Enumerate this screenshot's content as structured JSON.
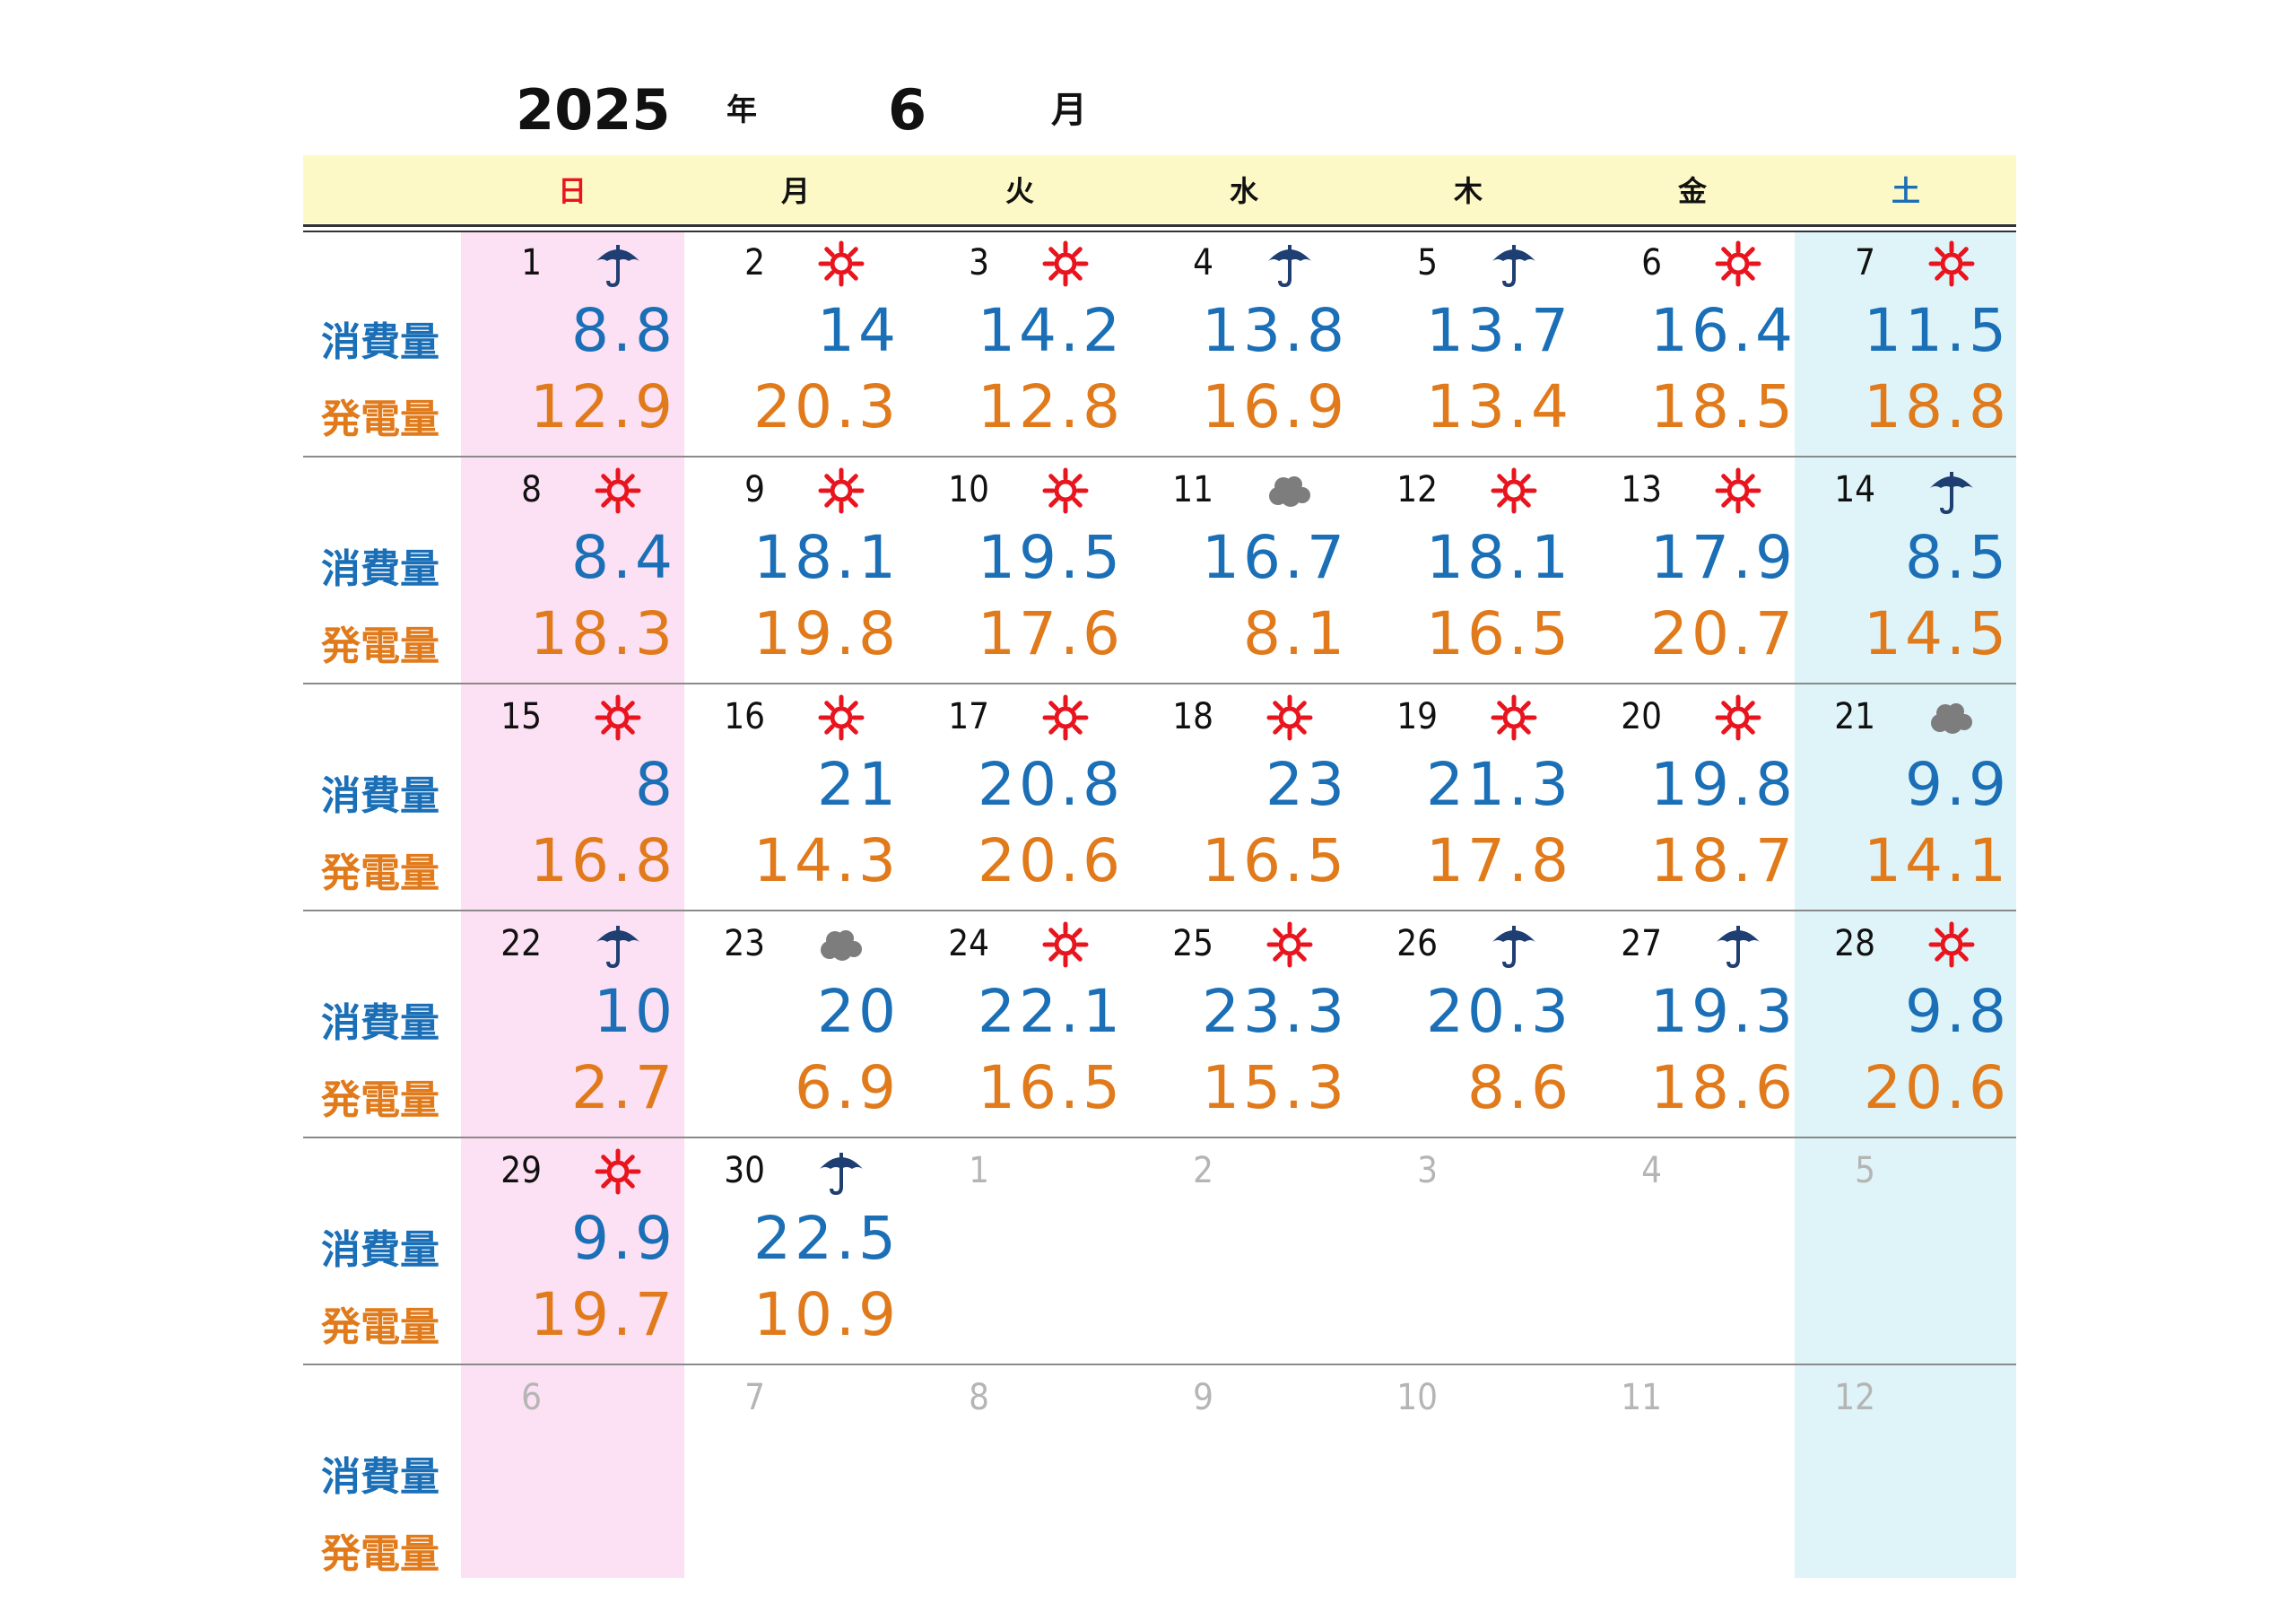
{
  "header": {
    "year": "2025",
    "year_suffix": "年",
    "month": "6",
    "month_suffix": "月"
  },
  "weekdays": [
    {
      "label": "日",
      "color": "#e8151e"
    },
    {
      "label": "月",
      "color": "#111111"
    },
    {
      "label": "火",
      "color": "#111111"
    },
    {
      "label": "水",
      "color": "#111111"
    },
    {
      "label": "木",
      "color": "#111111"
    },
    {
      "label": "金",
      "color": "#111111"
    },
    {
      "label": "土",
      "color": "#1b6fb6"
    }
  ],
  "row_labels": {
    "consumption": "消費量",
    "generation": "発電量"
  },
  "colors": {
    "consumption": "#1b6fb6",
    "generation": "#e07a1b",
    "sun_icon": "#e8151e",
    "rain_icon": "#1f3f73",
    "cloud_icon": "#7d7d7d",
    "sunday_col": "#fce0f3",
    "saturday_col": "#dff4f8",
    "header_bg": "#fdf9c6"
  },
  "weeks": [
    [
      {
        "day": "1",
        "weather": "umbrella-icon",
        "consumption": "8.8",
        "generation": "12.9"
      },
      {
        "day": "2",
        "weather": "sun-icon",
        "consumption": "14",
        "generation": "20.3"
      },
      {
        "day": "3",
        "weather": "sun-icon",
        "consumption": "14.2",
        "generation": "12.8"
      },
      {
        "day": "4",
        "weather": "umbrella-icon",
        "consumption": "13.8",
        "generation": "16.9"
      },
      {
        "day": "5",
        "weather": "umbrella-icon",
        "consumption": "13.7",
        "generation": "13.4"
      },
      {
        "day": "6",
        "weather": "sun-icon",
        "consumption": "16.4",
        "generation": "18.5"
      },
      {
        "day": "7",
        "weather": "sun-icon",
        "consumption": "11.5",
        "generation": "18.8"
      }
    ],
    [
      {
        "day": "8",
        "weather": "sun-icon",
        "consumption": "8.4",
        "generation": "18.3"
      },
      {
        "day": "9",
        "weather": "sun-icon",
        "consumption": "18.1",
        "generation": "19.8"
      },
      {
        "day": "10",
        "weather": "sun-icon",
        "consumption": "19.5",
        "generation": "17.6"
      },
      {
        "day": "11",
        "weather": "cloud-icon",
        "consumption": "16.7",
        "generation": "8.1"
      },
      {
        "day": "12",
        "weather": "sun-icon",
        "consumption": "18.1",
        "generation": "16.5"
      },
      {
        "day": "13",
        "weather": "sun-icon",
        "consumption": "17.9",
        "generation": "20.7"
      },
      {
        "day": "14",
        "weather": "umbrella-icon",
        "consumption": "8.5",
        "generation": "14.5"
      }
    ],
    [
      {
        "day": "15",
        "weather": "sun-icon",
        "consumption": "8",
        "generation": "16.8"
      },
      {
        "day": "16",
        "weather": "sun-icon",
        "consumption": "21",
        "generation": "14.3"
      },
      {
        "day": "17",
        "weather": "sun-icon",
        "consumption": "20.8",
        "generation": "20.6"
      },
      {
        "day": "18",
        "weather": "sun-icon",
        "consumption": "23",
        "generation": "16.5"
      },
      {
        "day": "19",
        "weather": "sun-icon",
        "consumption": "21.3",
        "generation": "17.8"
      },
      {
        "day": "20",
        "weather": "sun-icon",
        "consumption": "19.8",
        "generation": "18.7"
      },
      {
        "day": "21",
        "weather": "cloud-icon",
        "consumption": "9.9",
        "generation": "14.1"
      }
    ],
    [
      {
        "day": "22",
        "weather": "umbrella-icon",
        "consumption": "10",
        "generation": "2.7"
      },
      {
        "day": "23",
        "weather": "cloud-icon",
        "consumption": "20",
        "generation": "6.9"
      },
      {
        "day": "24",
        "weather": "sun-icon",
        "consumption": "22.1",
        "generation": "16.5"
      },
      {
        "day": "25",
        "weather": "sun-icon",
        "consumption": "23.3",
        "generation": "15.3"
      },
      {
        "day": "26",
        "weather": "umbrella-icon",
        "consumption": "20.3",
        "generation": "8.6"
      },
      {
        "day": "27",
        "weather": "umbrella-icon",
        "consumption": "19.3",
        "generation": "18.6"
      },
      {
        "day": "28",
        "weather": "sun-icon",
        "consumption": "9.8",
        "generation": "20.6"
      }
    ],
    [
      {
        "day": "29",
        "weather": "sun-icon",
        "consumption": "9.9",
        "generation": "19.7"
      },
      {
        "day": "30",
        "weather": "umbrella-icon",
        "consumption": "22.5",
        "generation": "10.9"
      },
      {
        "day": "1",
        "other": true
      },
      {
        "day": "2",
        "other": true
      },
      {
        "day": "3",
        "other": true
      },
      {
        "day": "4",
        "other": true
      },
      {
        "day": "5",
        "other": true
      }
    ],
    [
      {
        "day": "6",
        "other": true
      },
      {
        "day": "7",
        "other": true
      },
      {
        "day": "8",
        "other": true
      },
      {
        "day": "9",
        "other": true
      },
      {
        "day": "10",
        "other": true
      },
      {
        "day": "11",
        "other": true
      },
      {
        "day": "12",
        "other": true
      }
    ]
  ]
}
